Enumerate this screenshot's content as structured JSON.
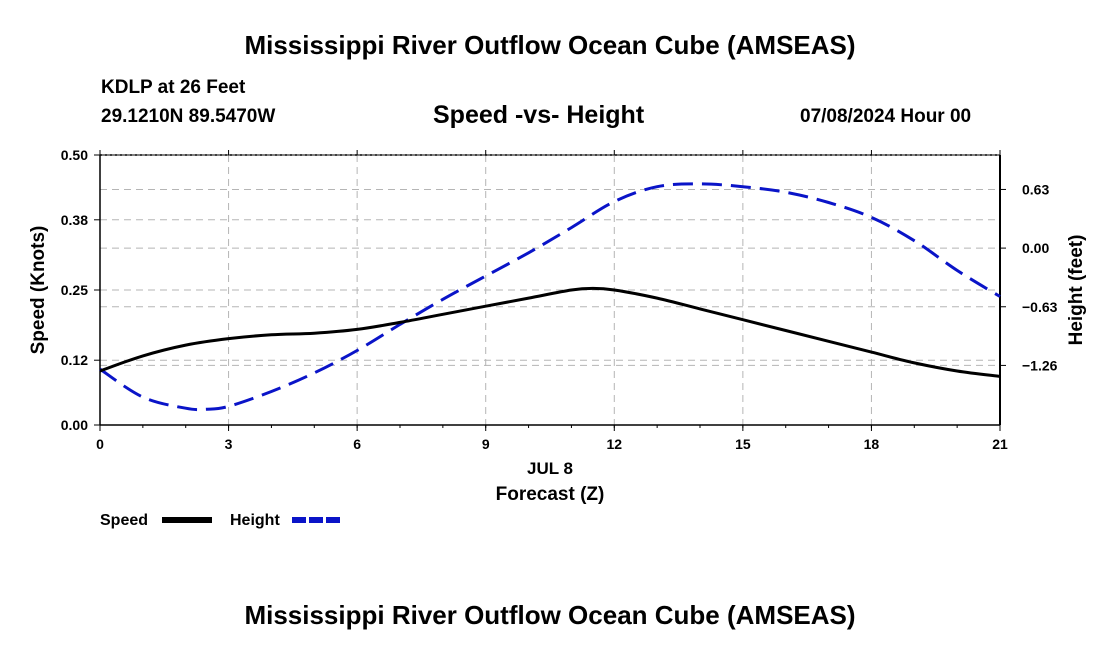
{
  "header": {
    "main_title": "Mississippi River Outflow Ocean Cube (AMSEAS)",
    "station": "KDLP at 26 Feet",
    "coords": "29.1210N  89.5470W",
    "plot_title": "Speed -vs- Height",
    "datetime": "07/08/2024 Hour 00"
  },
  "footer": {
    "repeat_title": "Mississippi River Outflow Ocean Cube (AMSEAS)"
  },
  "legend": {
    "speed_label": "Speed",
    "height_label": "Height"
  },
  "colors": {
    "speed": "#000000",
    "height": "#0a14c8",
    "grid": "#b5b5b5"
  },
  "chart_data": {
    "type": "line",
    "title": "Speed -vs- Height",
    "xlabel": "Forecast (Z)",
    "xlabel_date": "JUL 8",
    "ylabel": "Speed (Knots)",
    "y2label": "Height (feet)",
    "xlim": [
      0,
      21
    ],
    "ylim": [
      0,
      0.5
    ],
    "y2lim": [
      -1.9,
      1.0
    ],
    "x_ticks": [
      "0",
      "3",
      "6",
      "9",
      "12",
      "15",
      "18",
      "21"
    ],
    "y_ticks": [
      "0.00",
      "0.12",
      "0.25",
      "0.38",
      "0.50"
    ],
    "y2_ticks": [
      "-1.26",
      "-0.63",
      "0.00",
      "0.63"
    ],
    "series": [
      {
        "name": "Speed",
        "axis": "left",
        "x": [
          0,
          1,
          2,
          3,
          4,
          5,
          6,
          7,
          8,
          9,
          10,
          11,
          11.5,
          12,
          13,
          14,
          15,
          16,
          17,
          18,
          19,
          20,
          21
        ],
        "values": [
          0.1,
          0.128,
          0.148,
          0.16,
          0.167,
          0.17,
          0.177,
          0.19,
          0.205,
          0.22,
          0.235,
          0.25,
          0.253,
          0.25,
          0.235,
          0.215,
          0.195,
          0.175,
          0.155,
          0.135,
          0.115,
          0.1,
          0.09
        ]
      },
      {
        "name": "Height",
        "axis": "right",
        "x": [
          0,
          1,
          2,
          2.5,
          3,
          4,
          5,
          6,
          7,
          8,
          9,
          10,
          11,
          12,
          13,
          14,
          15,
          16,
          17,
          18,
          19,
          20,
          21
        ],
        "values": [
          -1.3,
          -1.6,
          -1.72,
          -1.73,
          -1.7,
          -1.54,
          -1.34,
          -1.1,
          -0.82,
          -0.55,
          -0.3,
          -0.05,
          0.22,
          0.5,
          0.66,
          0.69,
          0.66,
          0.6,
          0.49,
          0.33,
          0.08,
          -0.24,
          -0.52
        ]
      }
    ]
  }
}
